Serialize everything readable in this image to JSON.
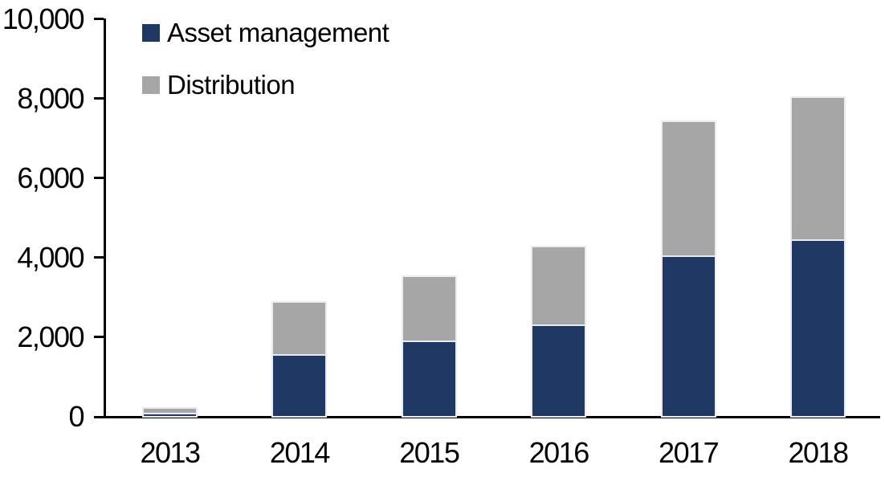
{
  "chart_data": {
    "type": "bar",
    "subtype": "stacked-column",
    "title": "",
    "xlabel": "",
    "ylabel": "",
    "categories": [
      "2013",
      "2014",
      "2015",
      "2016",
      "2017",
      "2018"
    ],
    "series": [
      {
        "name": "Asset management",
        "color": "#1F3864",
        "values": [
          80,
          1550,
          1900,
          2300,
          4050,
          4450
        ]
      },
      {
        "name": "Distribution",
        "color": "#A6A6A6",
        "values": [
          100,
          1300,
          1600,
          1950,
          3350,
          3550
        ]
      }
    ],
    "totals": [
      180,
      2850,
      3500,
      4250,
      7400,
      8000
    ],
    "ylim": [
      0,
      10000
    ],
    "yticks": [
      0,
      2000,
      4000,
      6000,
      8000,
      10000
    ],
    "ytick_labels": [
      "0",
      "2,000",
      "4,000",
      "6,000",
      "8,000",
      "10,000"
    ],
    "grid": false,
    "legend_position": "top-left",
    "axis_color": "#000000",
    "background_color": "#FFFFFF",
    "bar_outline_color": "#EBEBEB"
  }
}
